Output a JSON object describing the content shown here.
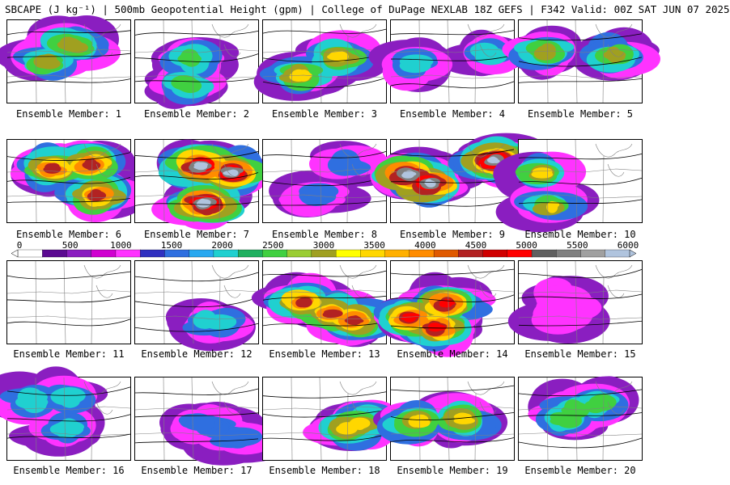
{
  "title": "SBCAPE (J kg⁻¹) | 500mb Geopotential Height (gpm) | College of DuPage NEXLAB 18Z GEFS | F342 Valid: 00Z SAT JUN 07 2025",
  "caption_prefix": "Ensemble Member: ",
  "members": [
    {
      "label": "Ensemble Member: 1",
      "coverage": "high",
      "max": 3000
    },
    {
      "label": "Ensemble Member: 2",
      "coverage": "mid",
      "max": 2500
    },
    {
      "label": "Ensemble Member: 3",
      "coverage": "mid",
      "max": 3500
    },
    {
      "label": "Ensemble Member: 4",
      "coverage": "mid",
      "max": 2000
    },
    {
      "label": "Ensemble Member: 5",
      "coverage": "mid",
      "max": 3000
    },
    {
      "label": "Ensemble Member: 6",
      "coverage": "high",
      "max": 4500
    },
    {
      "label": "Ensemble Member: 7",
      "coverage": "high",
      "max": 6000
    },
    {
      "label": "Ensemble Member: 8",
      "coverage": "mid",
      "max": 1500
    },
    {
      "label": "Ensemble Member: 9",
      "coverage": "high",
      "max": 6000
    },
    {
      "label": "Ensemble Member: 10",
      "coverage": "low",
      "max": 3500
    },
    {
      "label": "Ensemble Member: 11",
      "coverage": "none",
      "max": 0
    },
    {
      "label": "Ensemble Member: 12",
      "coverage": "low",
      "max": 2000
    },
    {
      "label": "Ensemble Member: 13",
      "coverage": "high",
      "max": 4500
    },
    {
      "label": "Ensemble Member: 14",
      "coverage": "high",
      "max": 5000
    },
    {
      "label": "Ensemble Member: 15",
      "coverage": "high",
      "max": 1000
    },
    {
      "label": "Ensemble Member: 16",
      "coverage": "high",
      "max": 2000
    },
    {
      "label": "Ensemble Member: 17",
      "coverage": "high",
      "max": 1500
    },
    {
      "label": "Ensemble Member: 18",
      "coverage": "mid",
      "max": 3500
    },
    {
      "label": "Ensemble Member: 19",
      "coverage": "mid",
      "max": 3500
    },
    {
      "label": "Ensemble Member: 20",
      "coverage": "high",
      "max": 2500
    }
  ],
  "colorbar": {
    "ticks": [
      "0",
      "500",
      "1000",
      "1500",
      "2000",
      "2500",
      "3000",
      "3500",
      "4000",
      "4500",
      "5000",
      "5500",
      "6000"
    ],
    "colors": [
      "#ffffff",
      "#5b0a91",
      "#8a1ec0",
      "#d000d0",
      "#ff33ff",
      "#3030c0",
      "#2f6fe0",
      "#28a8f0",
      "#20d0d0",
      "#20b060",
      "#40d040",
      "#9acd32",
      "#a0a020",
      "#ffff00",
      "#ffd700",
      "#ffb000",
      "#ff8c00",
      "#e05a00",
      "#b22222",
      "#d00000",
      "#ff0000",
      "#606060",
      "#808080",
      "#a0a0a0",
      "#b0c4de"
    ]
  },
  "map_colors": {
    "background": "#ffffff",
    "land_lines": "#000000",
    "state_lines": "#808080"
  }
}
